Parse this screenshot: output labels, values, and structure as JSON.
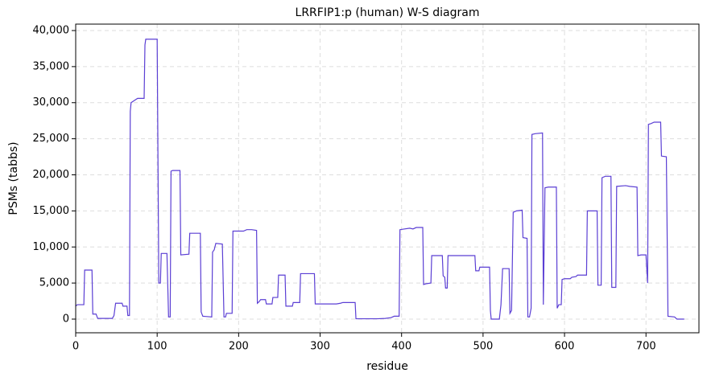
{
  "chart_data": {
    "type": "line",
    "title": "LRRFIP1:p (human) W-S diagram",
    "x_label": "residue",
    "y_label": "PSMs (tabbs)",
    "x": [
      0,
      2,
      10,
      11,
      20,
      21,
      25,
      27,
      45,
      47,
      49,
      57,
      58,
      63,
      64,
      66,
      67,
      68,
      72,
      76,
      84,
      85,
      86,
      100,
      102,
      104,
      105,
      112,
      114,
      116,
      117,
      119,
      128,
      129,
      139,
      140,
      153,
      154,
      156,
      167,
      168,
      170,
      172,
      180,
      182,
      184,
      185,
      192,
      193,
      206,
      210,
      216,
      222,
      223,
      225,
      227,
      233,
      234,
      241,
      242,
      248,
      249,
      257,
      258,
      266,
      267,
      275,
      276,
      293,
      294,
      320,
      325,
      328,
      343,
      344,
      370,
      380,
      387,
      391,
      397,
      398,
      410,
      414,
      418,
      426,
      427,
      430,
      436,
      437,
      450,
      451,
      453,
      454,
      456,
      457,
      490,
      491,
      495,
      496,
      508,
      509,
      510,
      520,
      522,
      524,
      532,
      533,
      535,
      537,
      541,
      548,
      549,
      554,
      555,
      557,
      559,
      560,
      564,
      573,
      574,
      576,
      580,
      590,
      591,
      593,
      596,
      597,
      600,
      607,
      609,
      614,
      616,
      627,
      628,
      640,
      641,
      645,
      646,
      650,
      657,
      658,
      663,
      664,
      675,
      680,
      689,
      690,
      694,
      700,
      702,
      703,
      706,
      710,
      718,
      719,
      725,
      727,
      735,
      738,
      747
    ],
    "series": [
      {
        "name": "PSMs",
        "color": "#5b3fd4",
        "values": [
          1800,
          2000,
          2000,
          6800,
          6800,
          700,
          700,
          100,
          100,
          500,
          2200,
          2200,
          1800,
          1800,
          500,
          500,
          28800,
          30000,
          30300,
          30600,
          30600,
          38000,
          38800,
          38800,
          5000,
          5000,
          9100,
          9100,
          300,
          300,
          20500,
          20600,
          20600,
          8900,
          9000,
          11900,
          11900,
          1000,
          400,
          300,
          9300,
          9600,
          10500,
          10400,
          300,
          300,
          800,
          800,
          12200,
          12200,
          12400,
          12400,
          12300,
          2200,
          2400,
          2700,
          2700,
          2100,
          2100,
          3000,
          3000,
          6100,
          6100,
          1800,
          1800,
          2300,
          2300,
          6300,
          6300,
          2100,
          2100,
          2200,
          2300,
          2300,
          50,
          50,
          100,
          200,
          400,
          400,
          12400,
          12600,
          12500,
          12700,
          12700,
          4800,
          4900,
          5000,
          8800,
          8800,
          6000,
          5800,
          4300,
          4300,
          8800,
          8800,
          6700,
          6700,
          7200,
          7200,
          1200,
          0,
          0,
          2000,
          7000,
          7000,
          800,
          1200,
          14800,
          15000,
          15100,
          11300,
          11200,
          300,
          300,
          1500,
          25600,
          25700,
          25800,
          2000,
          18200,
          18300,
          18300,
          1500,
          2000,
          2000,
          5500,
          5600,
          5600,
          5800,
          5900,
          6100,
          6100,
          15000,
          15000,
          4700,
          4700,
          19600,
          19800,
          19800,
          4400,
          4400,
          18400,
          18500,
          18400,
          18300,
          8800,
          8900,
          8900,
          5000,
          27000,
          27100,
          27300,
          27300,
          22600,
          22500,
          400,
          300,
          0,
          0
        ]
      }
    ],
    "xlim": [
      0,
      765
    ],
    "ylim": [
      -1894,
      40891
    ],
    "xticks": [
      0,
      100,
      200,
      300,
      400,
      500,
      600,
      700
    ],
    "yticks": [
      0,
      {
        "value": 5000,
        "label": "5,000"
      },
      {
        "value": 10000,
        "label": "10,000"
      },
      {
        "value": 15000,
        "label": "15,000"
      },
      {
        "value": 20000,
        "label": "20,000"
      },
      {
        "value": 25000,
        "label": "25,000"
      },
      {
        "value": 30000,
        "label": "30,000"
      },
      {
        "value": 35000,
        "label": "35,000"
      },
      {
        "value": 40000,
        "label": "40,000"
      }
    ],
    "grid": true
  }
}
